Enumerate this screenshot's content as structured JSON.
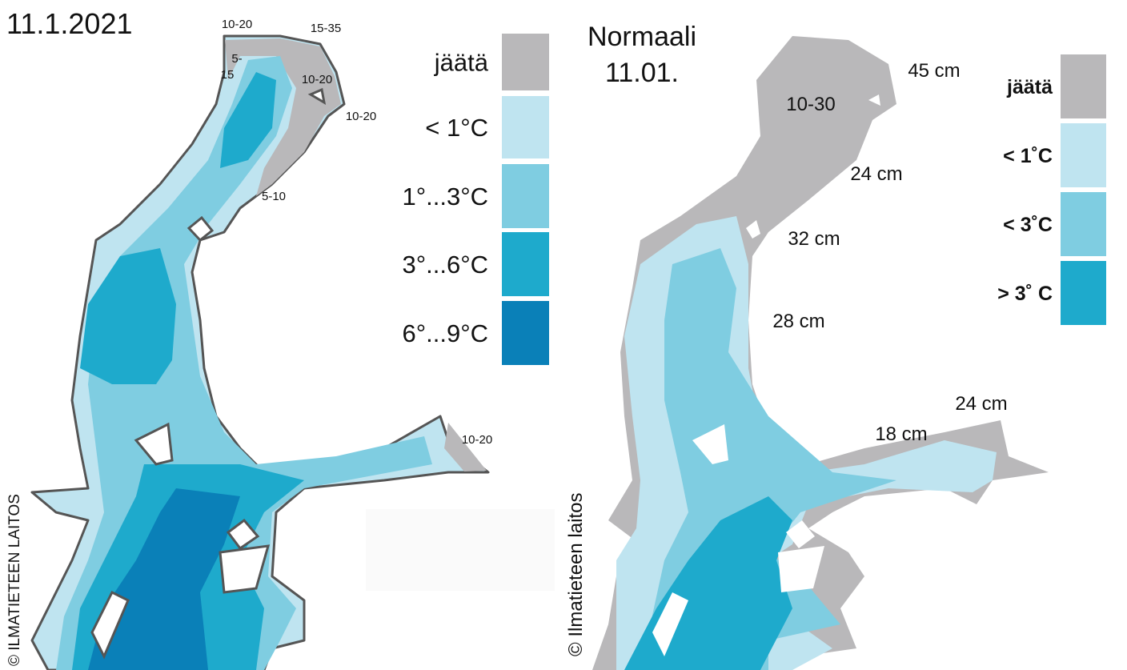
{
  "left_map": {
    "date": "11.1.2021",
    "ice_labels": [
      "10-20",
      "15-35",
      "5-",
      "15",
      "10-20",
      "10-20",
      "5-10",
      "10-20"
    ],
    "legend": [
      {
        "label": "jäätä",
        "color": "#b9b8ba"
      },
      {
        "label": "<  1°C",
        "color": "#bfe4f0"
      },
      {
        "label": "1°...3°C",
        "color": "#7fcde1"
      },
      {
        "label": "3°...6°C",
        "color": "#1eaacc"
      },
      {
        "label": "6°...9°C",
        "color": "#0a80b8"
      }
    ],
    "copyright": "© ILMATIETEEN LAITOS"
  },
  "right_map": {
    "title": "Normaali",
    "date": "11.01.",
    "ice_labels": [
      "45 cm",
      "10-30",
      "24 cm",
      "32 cm",
      "28 cm",
      "24 cm",
      "18 cm"
    ],
    "legend": [
      {
        "label": "jäätä",
        "color": "#b9b8ba"
      },
      {
        "label": "< 1˚C",
        "color": "#bfe4f0"
      },
      {
        "label": "< 3˚C",
        "color": "#7fcde1"
      },
      {
        "label": "> 3˚ C",
        "color": "#1eaacc"
      }
    ],
    "copyright": "© Ilmatieteen laitos"
  }
}
